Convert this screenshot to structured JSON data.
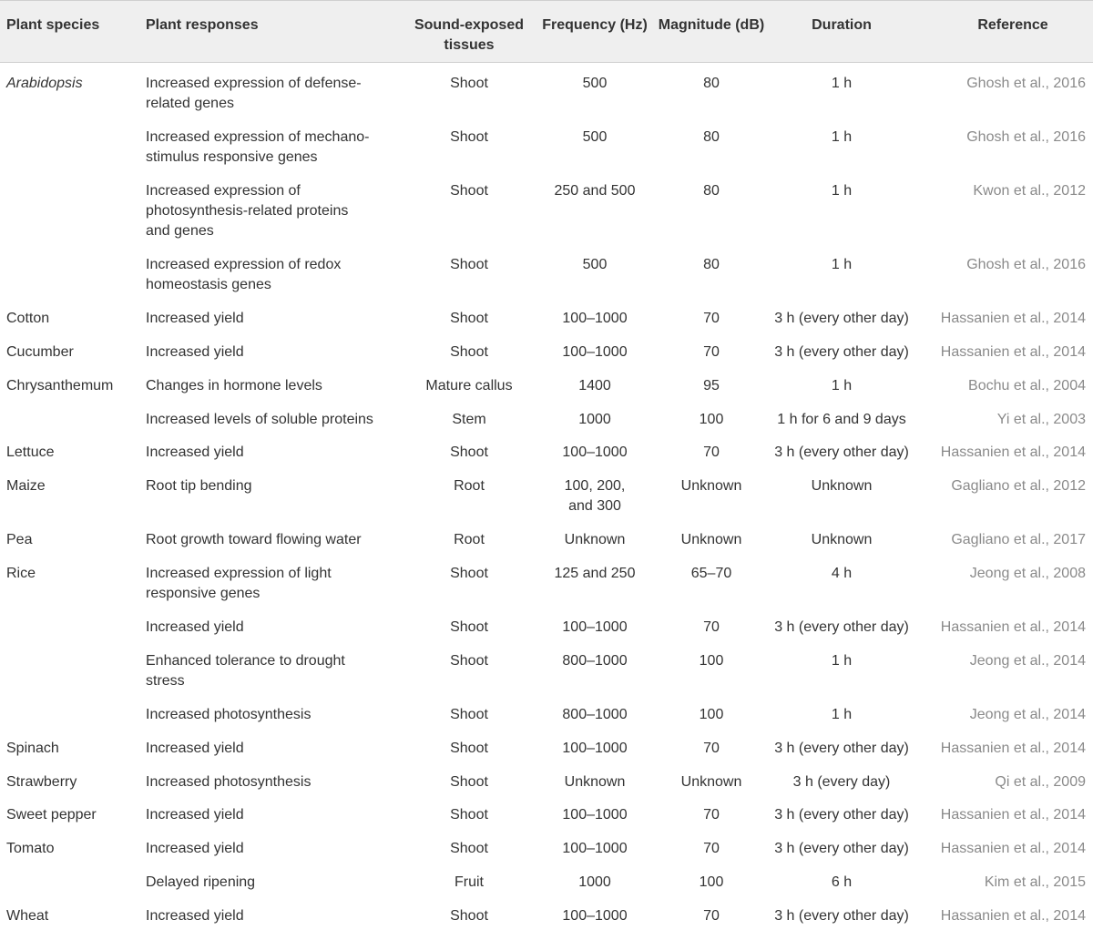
{
  "headers": {
    "species": "Plant species",
    "responses": "Plant responses",
    "tissues": "Sound-exposed tissues",
    "frequency": "Frequency (Hz)",
    "magnitude": "Magnitude (dB)",
    "duration": "Duration",
    "reference": "Reference"
  },
  "rows": [
    {
      "species": "Arabidopsis",
      "italic": true,
      "response": "Increased expression of defense-related genes",
      "tissue": "Shoot",
      "frequency": "500",
      "magnitude": "80",
      "duration": "1 h",
      "reference": "Ghosh et al., 2016"
    },
    {
      "species": "",
      "response": "Increased expression of mechano-stimulus responsive genes",
      "tissue": "Shoot",
      "frequency": "500",
      "magnitude": "80",
      "duration": "1 h",
      "reference": "Ghosh et al., 2016"
    },
    {
      "species": "",
      "response": "Increased expression of photosynthesis-related proteins and genes",
      "tissue": "Shoot",
      "frequency": "250 and 500",
      "magnitude": "80",
      "duration": "1 h",
      "reference": "Kwon et al., 2012"
    },
    {
      "species": "",
      "response": "Increased expression of redox homeostasis genes",
      "tissue": "Shoot",
      "frequency": "500",
      "magnitude": "80",
      "duration": "1 h",
      "reference": "Ghosh et al., 2016"
    },
    {
      "species": "Cotton",
      "response": "Increased yield",
      "tissue": "Shoot",
      "frequency": "100–1000",
      "magnitude": "70",
      "duration": "3 h (every other day)",
      "reference": "Hassanien et al., 2014"
    },
    {
      "species": "Cucumber",
      "response": "Increased yield",
      "tissue": "Shoot",
      "frequency": "100–1000",
      "magnitude": "70",
      "duration": "3 h (every other day)",
      "reference": "Hassanien et al., 2014"
    },
    {
      "species": "Chrysanthemum",
      "response": "Changes in hormone levels",
      "tissue": "Mature callus",
      "frequency": "1400",
      "magnitude": "95",
      "duration": "1 h",
      "reference": "Bochu et al., 2004"
    },
    {
      "species": "",
      "response": "Increased levels of soluble proteins",
      "tissue": "Stem",
      "frequency": "1000",
      "magnitude": "100",
      "duration": "1 h for 6 and 9 days",
      "reference": "Yi et al., 2003"
    },
    {
      "species": "Lettuce",
      "response": "Increased yield",
      "tissue": "Shoot",
      "frequency": "100–1000",
      "magnitude": "70",
      "duration": "3 h (every other day)",
      "reference": "Hassanien et al., 2014"
    },
    {
      "species": "Maize",
      "response": "Root tip bending",
      "tissue": "Root",
      "frequency": "100, 200, and 300",
      "magnitude": "Unknown",
      "duration": "Unknown",
      "reference": "Gagliano et al., 2012"
    },
    {
      "species": "Pea",
      "response": "Root growth toward flowing water",
      "tissue": "Root",
      "frequency": "Unknown",
      "magnitude": "Unknown",
      "duration": "Unknown",
      "reference": "Gagliano et al., 2017"
    },
    {
      "species": "Rice",
      "response": "Increased expression of light responsive genes",
      "tissue": "Shoot",
      "frequency": "125 and 250",
      "magnitude": "65–70",
      "duration": "4 h",
      "reference": "Jeong et al., 2008"
    },
    {
      "species": "",
      "response": "Increased yield",
      "tissue": "Shoot",
      "frequency": "100–1000",
      "magnitude": "70",
      "duration": "3 h (every other day)",
      "reference": "Hassanien et al., 2014"
    },
    {
      "species": "",
      "response": "Enhanced tolerance to drought stress",
      "tissue": "Shoot",
      "frequency": "800–1000",
      "magnitude": "100",
      "duration": "1 h",
      "reference": "Jeong et al., 2014"
    },
    {
      "species": "",
      "response": "Increased photosynthesis",
      "tissue": "Shoot",
      "frequency": "800–1000",
      "magnitude": "100",
      "duration": "1 h",
      "reference": "Jeong et al., 2014"
    },
    {
      "species": "Spinach",
      "response": "Increased yield",
      "tissue": "Shoot",
      "frequency": "100–1000",
      "magnitude": "70",
      "duration": "3 h (every other day)",
      "reference": "Hassanien et al., 2014"
    },
    {
      "species": "Strawberry",
      "response": "Increased photosynthesis",
      "tissue": "Shoot",
      "frequency": "Unknown",
      "magnitude": "Unknown",
      "duration": "3 h (every day)",
      "reference": "Qi et al., 2009"
    },
    {
      "species": "Sweet pepper",
      "response": "Increased yield",
      "tissue": "Shoot",
      "frequency": "100–1000",
      "magnitude": "70",
      "duration": "3 h (every other day)",
      "reference": "Hassanien et al., 2014"
    },
    {
      "species": "Tomato",
      "response": "Increased yield",
      "tissue": "Shoot",
      "frequency": "100–1000",
      "magnitude": "70",
      "duration": "3 h (every other day)",
      "reference": "Hassanien et al., 2014"
    },
    {
      "species": "",
      "response": "Delayed ripening",
      "tissue": "Fruit",
      "frequency": "1000",
      "magnitude": "100",
      "duration": "6 h",
      "reference": "Kim et al., 2015"
    },
    {
      "species": "Wheat",
      "response": "Increased yield",
      "tissue": "Shoot",
      "frequency": "100–1000",
      "magnitude": "70",
      "duration": "3 h (every other day)",
      "reference": "Hassanien et al., 2014"
    }
  ]
}
